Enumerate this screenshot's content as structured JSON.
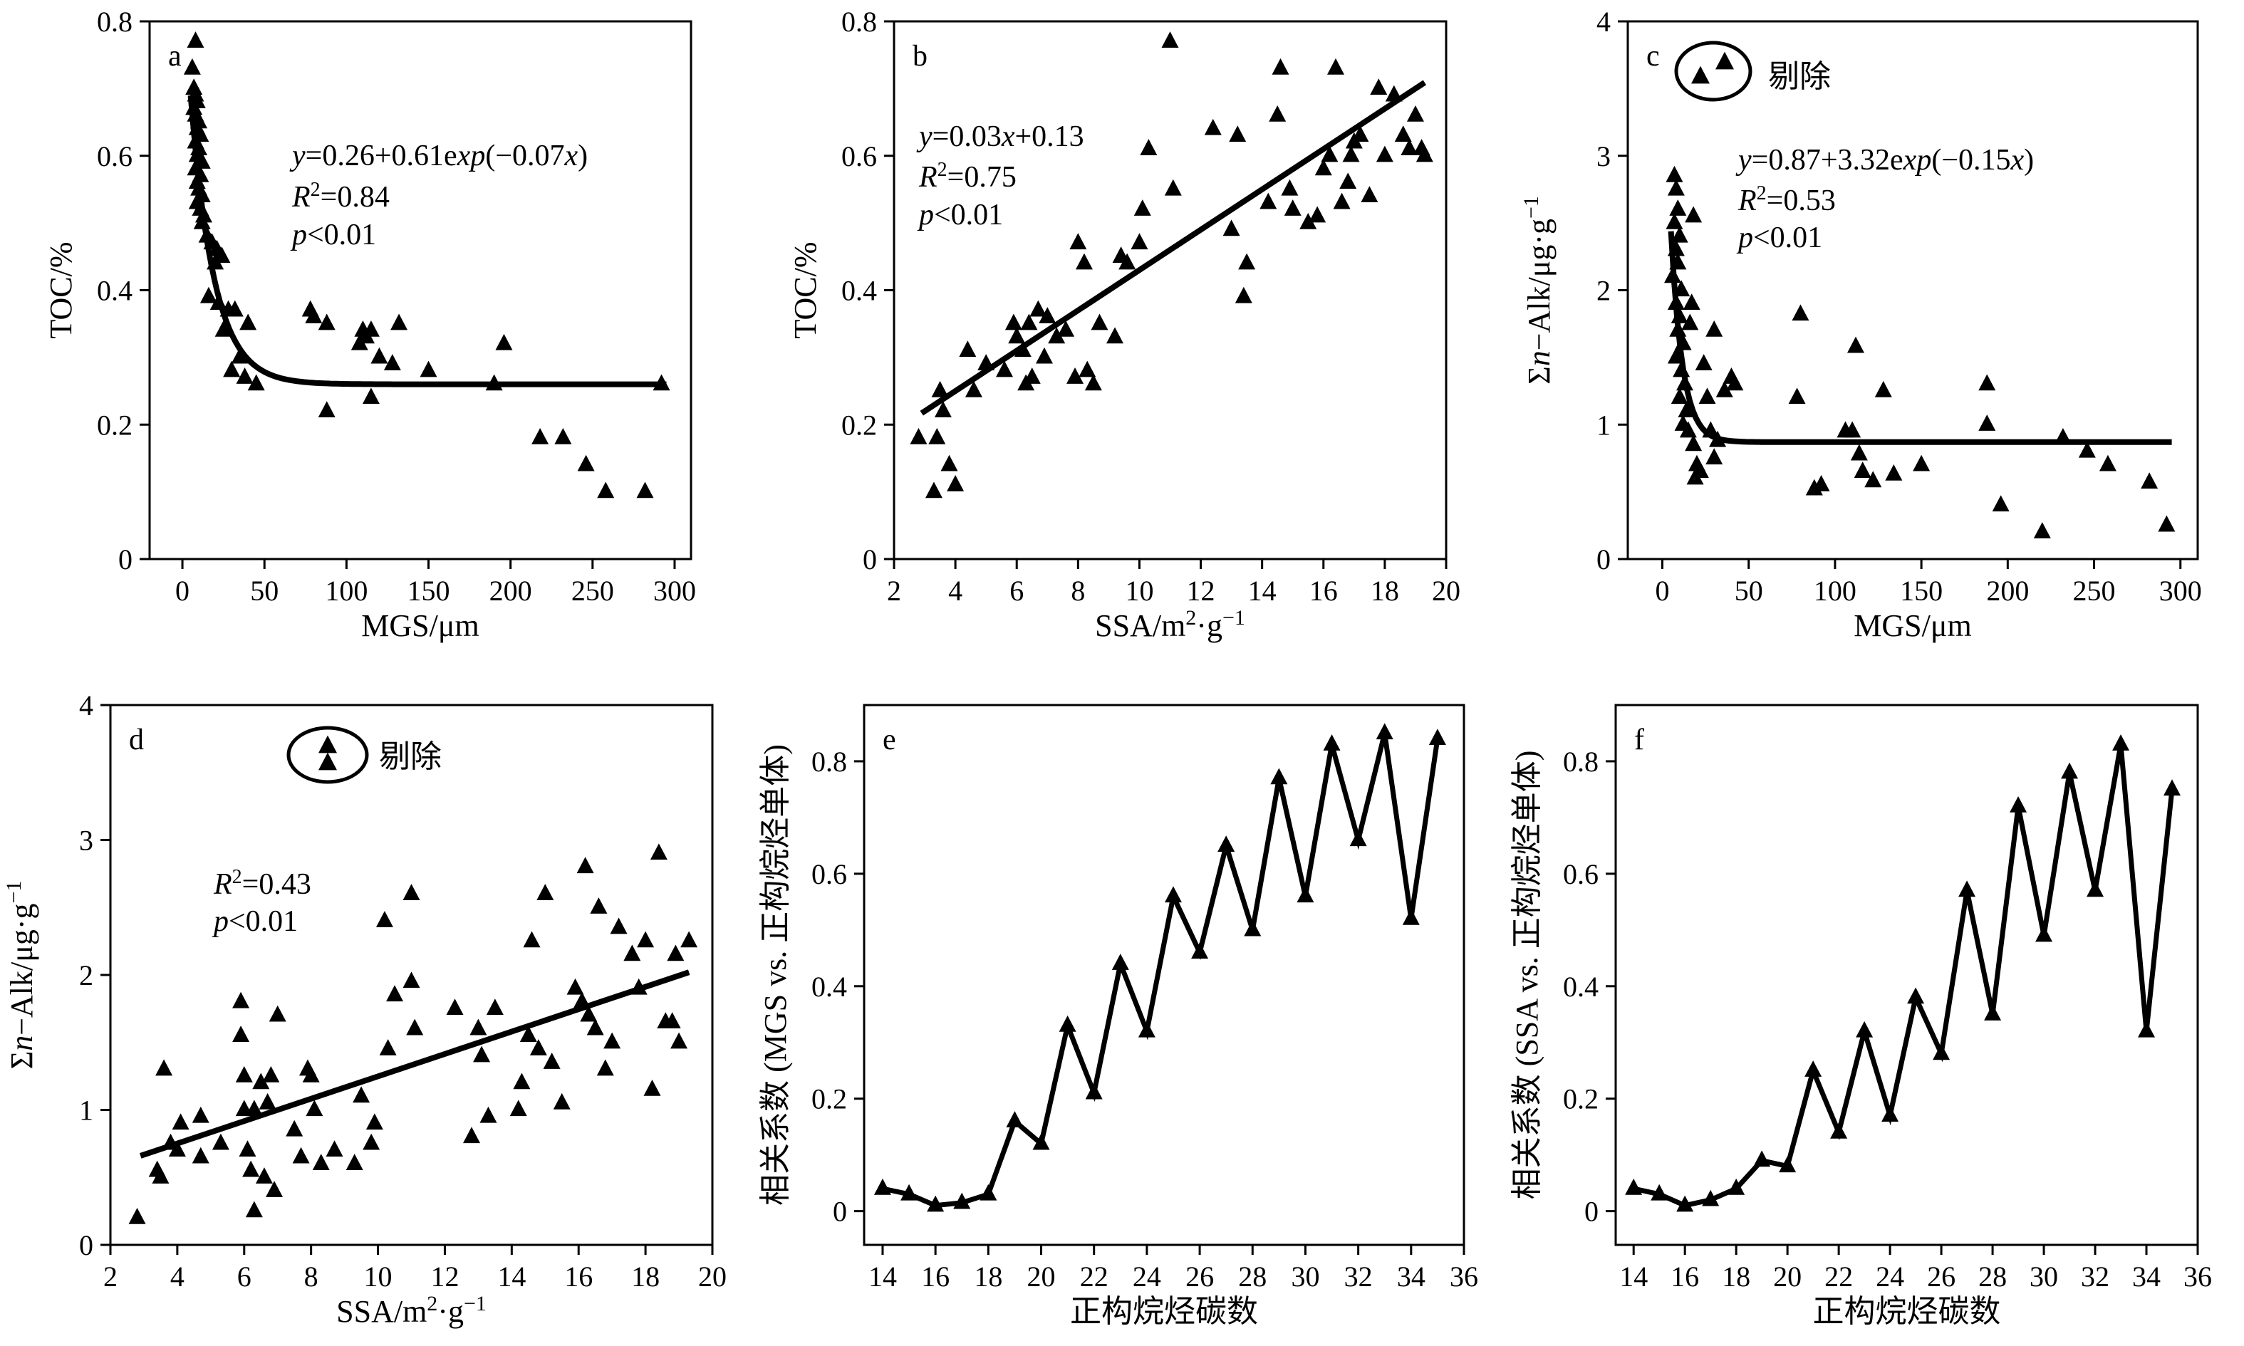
{
  "chart_data": [
    {
      "id": "a",
      "type": "scatter",
      "panel_label": "a",
      "xlabel": "MGS/μm",
      "ylabel": "TOC/%",
      "xlim": [
        -20,
        310
      ],
      "ylim": [
        0,
        0.8
      ],
      "xticks": [
        0,
        50,
        100,
        150,
        200,
        250,
        300
      ],
      "yticks": [
        0,
        0.2,
        0.4,
        0.6,
        0.8
      ],
      "yticklabels": [
        "0",
        "0.2",
        "0.4",
        "0.6",
        "0.8"
      ],
      "annotations": [
        "y=0.26+0.61exp(−0.07x)",
        "R²=0.84",
        "p<0.01"
      ],
      "fit": {
        "kind": "exp",
        "a": 0.26,
        "b": 0.61,
        "c": -0.07,
        "xrange": [
          5,
          295
        ]
      },
      "points": [
        [
          8,
          0.77
        ],
        [
          6,
          0.73
        ],
        [
          7,
          0.7
        ],
        [
          8,
          0.69
        ],
        [
          9,
          0.68
        ],
        [
          7,
          0.67
        ],
        [
          8,
          0.66
        ],
        [
          10,
          0.65
        ],
        [
          9,
          0.64
        ],
        [
          11,
          0.63
        ],
        [
          8,
          0.62
        ],
        [
          10,
          0.61
        ],
        [
          9,
          0.6
        ],
        [
          12,
          0.59
        ],
        [
          8,
          0.58
        ],
        [
          11,
          0.57
        ],
        [
          9,
          0.56
        ],
        [
          10,
          0.55
        ],
        [
          12,
          0.54
        ],
        [
          9,
          0.53
        ],
        [
          11,
          0.52
        ],
        [
          13,
          0.51
        ],
        [
          12,
          0.5
        ],
        [
          15,
          0.48
        ],
        [
          18,
          0.47
        ],
        [
          21,
          0.46
        ],
        [
          24,
          0.45
        ],
        [
          20,
          0.44
        ],
        [
          16,
          0.39
        ],
        [
          22,
          0.38
        ],
        [
          28,
          0.37
        ],
        [
          32,
          0.37
        ],
        [
          25,
          0.34
        ],
        [
          40,
          0.35
        ],
        [
          35,
          0.3
        ],
        [
          30,
          0.28
        ],
        [
          38,
          0.27
        ],
        [
          45,
          0.26
        ],
        [
          78,
          0.37
        ],
        [
          80,
          0.36
        ],
        [
          88,
          0.35
        ],
        [
          110,
          0.34
        ],
        [
          115,
          0.34
        ],
        [
          112,
          0.33
        ],
        [
          108,
          0.32
        ],
        [
          120,
          0.3
        ],
        [
          132,
          0.35
        ],
        [
          128,
          0.29
        ],
        [
          150,
          0.28
        ],
        [
          115,
          0.24
        ],
        [
          88,
          0.22
        ],
        [
          190,
          0.26
        ],
        [
          196,
          0.32
        ],
        [
          218,
          0.18
        ],
        [
          232,
          0.18
        ],
        [
          246,
          0.14
        ],
        [
          258,
          0.1
        ],
        [
          282,
          0.1
        ],
        [
          292,
          0.26
        ]
      ]
    },
    {
      "id": "b",
      "type": "scatter",
      "panel_label": "b",
      "xlabel": "SSA/m²·g⁻¹",
      "ylabel": "TOC/%",
      "xlim": [
        2,
        20
      ],
      "ylim": [
        0,
        0.8
      ],
      "xticks": [
        2,
        4,
        6,
        8,
        10,
        12,
        14,
        16,
        18,
        20
      ],
      "yticks": [
        0,
        0.2,
        0.4,
        0.6,
        0.8
      ],
      "yticklabels": [
        "0",
        "0.2",
        "0.4",
        "0.6",
        "0.8"
      ],
      "annotations": [
        "y=0.03x+0.13",
        "R²=0.75",
        "p<0.01"
      ],
      "fit": {
        "kind": "linear",
        "m": 0.03,
        "b": 0.13,
        "xrange": [
          2.9,
          19.3
        ]
      },
      "points": [
        [
          2.8,
          0.18
        ],
        [
          3.3,
          0.1
        ],
        [
          3.4,
          0.18
        ],
        [
          3.5,
          0.25
        ],
        [
          3.6,
          0.22
        ],
        [
          3.8,
          0.14
        ],
        [
          4.0,
          0.11
        ],
        [
          4.4,
          0.31
        ],
        [
          4.6,
          0.25
        ],
        [
          5.0,
          0.29
        ],
        [
          5.6,
          0.28
        ],
        [
          5.9,
          0.35
        ],
        [
          6.0,
          0.33
        ],
        [
          6.2,
          0.31
        ],
        [
          6.3,
          0.26
        ],
        [
          6.4,
          0.35
        ],
        [
          6.5,
          0.27
        ],
        [
          6.7,
          0.37
        ],
        [
          6.9,
          0.3
        ],
        [
          7.0,
          0.36
        ],
        [
          7.3,
          0.33
        ],
        [
          7.6,
          0.34
        ],
        [
          7.9,
          0.27
        ],
        [
          8.0,
          0.47
        ],
        [
          8.2,
          0.44
        ],
        [
          8.3,
          0.28
        ],
        [
          8.5,
          0.26
        ],
        [
          8.7,
          0.35
        ],
        [
          9.2,
          0.33
        ],
        [
          9.4,
          0.45
        ],
        [
          9.6,
          0.44
        ],
        [
          10.0,
          0.47
        ],
        [
          10.1,
          0.52
        ],
        [
          10.3,
          0.61
        ],
        [
          11.0,
          0.77
        ],
        [
          11.1,
          0.55
        ],
        [
          12.4,
          0.64
        ],
        [
          13.0,
          0.49
        ],
        [
          13.2,
          0.63
        ],
        [
          13.4,
          0.39
        ],
        [
          13.5,
          0.44
        ],
        [
          14.2,
          0.53
        ],
        [
          14.5,
          0.66
        ],
        [
          14.6,
          0.73
        ],
        [
          14.9,
          0.55
        ],
        [
          15.0,
          0.52
        ],
        [
          15.5,
          0.5
        ],
        [
          15.8,
          0.51
        ],
        [
          16.0,
          0.58
        ],
        [
          16.2,
          0.6
        ],
        [
          16.4,
          0.73
        ],
        [
          16.6,
          0.53
        ],
        [
          16.8,
          0.56
        ],
        [
          16.9,
          0.6
        ],
        [
          17.0,
          0.62
        ],
        [
          17.2,
          0.63
        ],
        [
          17.5,
          0.54
        ],
        [
          17.8,
          0.7
        ],
        [
          18.0,
          0.6
        ],
        [
          18.3,
          0.69
        ],
        [
          18.6,
          0.63
        ],
        [
          18.8,
          0.61
        ],
        [
          19.0,
          0.66
        ],
        [
          19.2,
          0.61
        ],
        [
          19.3,
          0.6
        ]
      ]
    },
    {
      "id": "c",
      "type": "scatter",
      "panel_label": "c",
      "xlabel": "MGS/μm",
      "ylabel": "Σn−Alk/μg·g⁻¹",
      "xlim": [
        -20,
        310
      ],
      "ylim": [
        0,
        4
      ],
      "xticks": [
        0,
        50,
        100,
        150,
        200,
        250,
        300
      ],
      "yticks": [
        0,
        1,
        2,
        3,
        4
      ],
      "yticklabels": [
        "0",
        "1",
        "2",
        "3",
        "4"
      ],
      "annotations": [
        "y=0.87+3.32exp(−0.15x)",
        "R²=0.53",
        "p<0.01"
      ],
      "excluded_label": "剔除",
      "fit": {
        "kind": "exp",
        "a": 0.87,
        "b": 3.32,
        "c": -0.15,
        "xrange": [
          5,
          295
        ]
      },
      "points": [
        [
          7,
          2.85
        ],
        [
          8,
          2.75
        ],
        [
          9,
          2.6
        ],
        [
          7,
          2.5
        ],
        [
          10,
          2.4
        ],
        [
          8,
          2.3
        ],
        [
          9,
          2.2
        ],
        [
          6,
          2.1
        ],
        [
          11,
          2.0
        ],
        [
          8,
          1.9
        ],
        [
          10,
          1.8
        ],
        [
          9,
          1.7
        ],
        [
          12,
          1.6
        ],
        [
          8,
          1.5
        ],
        [
          11,
          1.4
        ],
        [
          13,
          1.3
        ],
        [
          10,
          1.2
        ],
        [
          14,
          1.1
        ],
        [
          12,
          1.0
        ],
        [
          15,
          0.95
        ],
        [
          18,
          0.85
        ],
        [
          20,
          0.7
        ],
        [
          19,
          0.6
        ],
        [
          22,
          0.65
        ],
        [
          17,
          1.9
        ],
        [
          16,
          1.75
        ],
        [
          18,
          2.55
        ],
        [
          24,
          1.45
        ],
        [
          26,
          1.2
        ],
        [
          28,
          0.95
        ],
        [
          30,
          0.75
        ],
        [
          32,
          0.88
        ],
        [
          36,
          1.25
        ],
        [
          40,
          1.35
        ],
        [
          42,
          1.3
        ],
        [
          30,
          1.7
        ],
        [
          80,
          1.82
        ],
        [
          78,
          1.2
        ],
        [
          88,
          0.52
        ],
        [
          92,
          0.55
        ],
        [
          106,
          0.95
        ],
        [
          110,
          0.95
        ],
        [
          112,
          1.58
        ],
        [
          114,
          0.78
        ],
        [
          116,
          0.65
        ],
        [
          122,
          0.58
        ],
        [
          128,
          1.25
        ],
        [
          134,
          0.63
        ],
        [
          150,
          0.7
        ],
        [
          188,
          1.3
        ],
        [
          188,
          1.0
        ],
        [
          196,
          0.4
        ],
        [
          220,
          0.2
        ],
        [
          232,
          0.9
        ],
        [
          246,
          0.8
        ],
        [
          258,
          0.7
        ],
        [
          282,
          0.57
        ],
        [
          292,
          0.25
        ]
      ],
      "excluded_points": [
        [
          20,
          3.65
        ],
        [
          32,
          3.75
        ]
      ]
    },
    {
      "id": "d",
      "type": "scatter",
      "panel_label": "d",
      "xlabel": "SSA/m²·g⁻¹",
      "ylabel": "Σn−Alk/μg·g⁻¹",
      "xlim": [
        2,
        20
      ],
      "ylim": [
        0,
        4
      ],
      "xticks": [
        2,
        4,
        6,
        8,
        10,
        12,
        14,
        16,
        18,
        20
      ],
      "yticks": [
        0,
        1,
        2,
        3,
        4
      ],
      "yticklabels": [
        "0",
        "1",
        "2",
        "3",
        "4"
      ],
      "annotations": [
        "R²=0.43",
        "p<0.01"
      ],
      "excluded_label": "剔除",
      "fit": {
        "kind": "linear_pts",
        "x0": 2.9,
        "y0": 0.66,
        "x1": 19.3,
        "y1": 2.02
      },
      "points": [
        [
          2.8,
          0.2
        ],
        [
          3.4,
          0.55
        ],
        [
          3.5,
          0.5
        ],
        [
          3.6,
          1.3
        ],
        [
          3.8,
          0.75
        ],
        [
          4.0,
          0.7
        ],
        [
          4.1,
          0.9
        ],
        [
          4.7,
          0.65
        ],
        [
          4.7,
          0.95
        ],
        [
          5.3,
          0.75
        ],
        [
          5.9,
          1.8
        ],
        [
          5.9,
          1.55
        ],
        [
          6.0,
          1.25
        ],
        [
          6.0,
          1.0
        ],
        [
          6.1,
          0.7
        ],
        [
          6.2,
          0.55
        ],
        [
          6.3,
          0.25
        ],
        [
          6.3,
          1.0
        ],
        [
          6.5,
          1.2
        ],
        [
          6.6,
          0.5
        ],
        [
          6.7,
          1.05
        ],
        [
          6.8,
          1.25
        ],
        [
          6.9,
          0.4
        ],
        [
          7.0,
          1.7
        ],
        [
          7.5,
          0.85
        ],
        [
          7.7,
          0.65
        ],
        [
          7.9,
          1.3
        ],
        [
          8.0,
          1.25
        ],
        [
          8.1,
          1.0
        ],
        [
          8.3,
          0.6
        ],
        [
          8.7,
          0.7
        ],
        [
          9.3,
          0.6
        ],
        [
          9.5,
          1.1
        ],
        [
          9.8,
          0.75
        ],
        [
          9.9,
          0.9
        ],
        [
          10.2,
          2.4
        ],
        [
          10.3,
          1.45
        ],
        [
          10.5,
          1.85
        ],
        [
          11.0,
          2.6
        ],
        [
          11.0,
          1.95
        ],
        [
          11.1,
          1.6
        ],
        [
          12.3,
          1.75
        ],
        [
          12.8,
          0.8
        ],
        [
          13.0,
          1.6
        ],
        [
          13.1,
          1.4
        ],
        [
          13.3,
          0.95
        ],
        [
          13.5,
          1.75
        ],
        [
          14.2,
          1.0
        ],
        [
          14.3,
          1.2
        ],
        [
          14.5,
          1.55
        ],
        [
          14.6,
          2.25
        ],
        [
          14.8,
          1.45
        ],
        [
          15.0,
          2.6
        ],
        [
          15.2,
          1.35
        ],
        [
          15.5,
          1.05
        ],
        [
          15.9,
          1.9
        ],
        [
          16.1,
          1.8
        ],
        [
          16.2,
          2.8
        ],
        [
          16.3,
          1.7
        ],
        [
          16.5,
          1.6
        ],
        [
          16.6,
          2.5
        ],
        [
          16.8,
          1.3
        ],
        [
          17.0,
          1.5
        ],
        [
          17.2,
          2.35
        ],
        [
          17.6,
          2.15
        ],
        [
          17.8,
          1.9
        ],
        [
          18.0,
          2.25
        ],
        [
          18.2,
          1.15
        ],
        [
          18.4,
          2.9
        ],
        [
          18.6,
          1.65
        ],
        [
          18.8,
          1.65
        ],
        [
          18.9,
          2.15
        ],
        [
          19.0,
          1.5
        ],
        [
          19.3,
          2.25
        ]
      ],
      "excluded_points": [
        [
          8.3,
          3.75
        ],
        [
          8.3,
          3.65
        ]
      ]
    },
    {
      "id": "e",
      "type": "line",
      "panel_label": "e",
      "xlabel": "正构烷烃碳数",
      "ylabel": "相关系数 (MGS vs. 正构烷烃单体)",
      "xlim": [
        13.3,
        36
      ],
      "ylim": [
        -0.06,
        0.9
      ],
      "xticks": [
        14,
        16,
        18,
        20,
        22,
        24,
        26,
        28,
        30,
        32,
        34,
        36
      ],
      "yticks": [
        0,
        0.2,
        0.4,
        0.6,
        0.8
      ],
      "yticklabels": [
        "0",
        "0.2",
        "0.4",
        "0.6",
        "0.8"
      ],
      "x": [
        14,
        15,
        16,
        17,
        18,
        19,
        20,
        21,
        22,
        23,
        24,
        25,
        26,
        27,
        28,
        29,
        30,
        31,
        32,
        33,
        34,
        35
      ],
      "y": [
        0.04,
        0.03,
        0.01,
        0.015,
        0.03,
        0.16,
        0.12,
        0.33,
        0.21,
        0.44,
        0.32,
        0.56,
        0.46,
        0.65,
        0.5,
        0.77,
        0.56,
        0.83,
        0.66,
        0.85,
        0.52,
        0.84
      ]
    },
    {
      "id": "f",
      "type": "line",
      "panel_label": "f",
      "xlabel": "正构烷烃碳数",
      "ylabel": "相关系数 (SSA vs. 正构烷烃单体)",
      "xlim": [
        13.3,
        36
      ],
      "ylim": [
        -0.06,
        0.9
      ],
      "xticks": [
        14,
        16,
        18,
        20,
        22,
        24,
        26,
        28,
        30,
        32,
        34,
        36
      ],
      "yticks": [
        0,
        0.2,
        0.4,
        0.6,
        0.8
      ],
      "yticklabels": [
        "0",
        "0.2",
        "0.4",
        "0.6",
        "0.8"
      ],
      "x": [
        14,
        15,
        16,
        17,
        18,
        19,
        20,
        21,
        22,
        23,
        24,
        25,
        26,
        27,
        28,
        29,
        30,
        31,
        32,
        33,
        34,
        35
      ],
      "y": [
        0.04,
        0.03,
        0.01,
        0.02,
        0.04,
        0.09,
        0.08,
        0.25,
        0.14,
        0.32,
        0.17,
        0.38,
        0.28,
        0.57,
        0.35,
        0.72,
        0.49,
        0.78,
        0.57,
        0.83,
        0.32,
        0.75
      ]
    }
  ]
}
